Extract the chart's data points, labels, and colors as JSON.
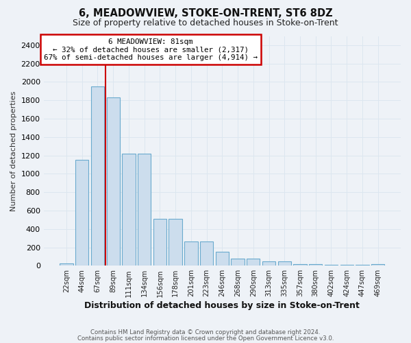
{
  "title": "6, MEADOWVIEW, STOKE-ON-TRENT, ST6 8DZ",
  "subtitle": "Size of property relative to detached houses in Stoke-on-Trent",
  "xlabel": "Distribution of detached houses by size in Stoke-on-Trent",
  "ylabel": "Number of detached properties",
  "bar_labels": [
    "22sqm",
    "44sqm",
    "67sqm",
    "89sqm",
    "111sqm",
    "134sqm",
    "156sqm",
    "178sqm",
    "201sqm",
    "223sqm",
    "246sqm",
    "268sqm",
    "290sqm",
    "313sqm",
    "335sqm",
    "357sqm",
    "380sqm",
    "402sqm",
    "424sqm",
    "447sqm",
    "469sqm"
  ],
  "bar_values": [
    25,
    1150,
    1950,
    1830,
    1220,
    1220,
    510,
    510,
    265,
    265,
    155,
    75,
    75,
    45,
    45,
    18,
    18,
    8,
    8,
    8,
    18
  ],
  "bar_color": "#ccdded",
  "bar_edge_color": "#6aaace",
  "vline_color": "#cc0000",
  "vline_x": 2.5,
  "annotation_title": "6 MEADOWVIEW: 81sqm",
  "annotation_line1": "← 32% of detached houses are smaller (2,317)",
  "annotation_line2": "67% of semi-detached houses are larger (4,914) →",
  "annotation_box_color": "#ffffff",
  "annotation_border_color": "#cc0000",
  "footer1": "Contains HM Land Registry data © Crown copyright and database right 2024.",
  "footer2": "Contains public sector information licensed under the Open Government Licence v3.0.",
  "ylim": [
    0,
    2500
  ],
  "yticks": [
    0,
    200,
    400,
    600,
    800,
    1000,
    1200,
    1400,
    1600,
    1800,
    2000,
    2200,
    2400
  ],
  "grid_color": "#dce6ef",
  "bg_color": "#eef2f7"
}
